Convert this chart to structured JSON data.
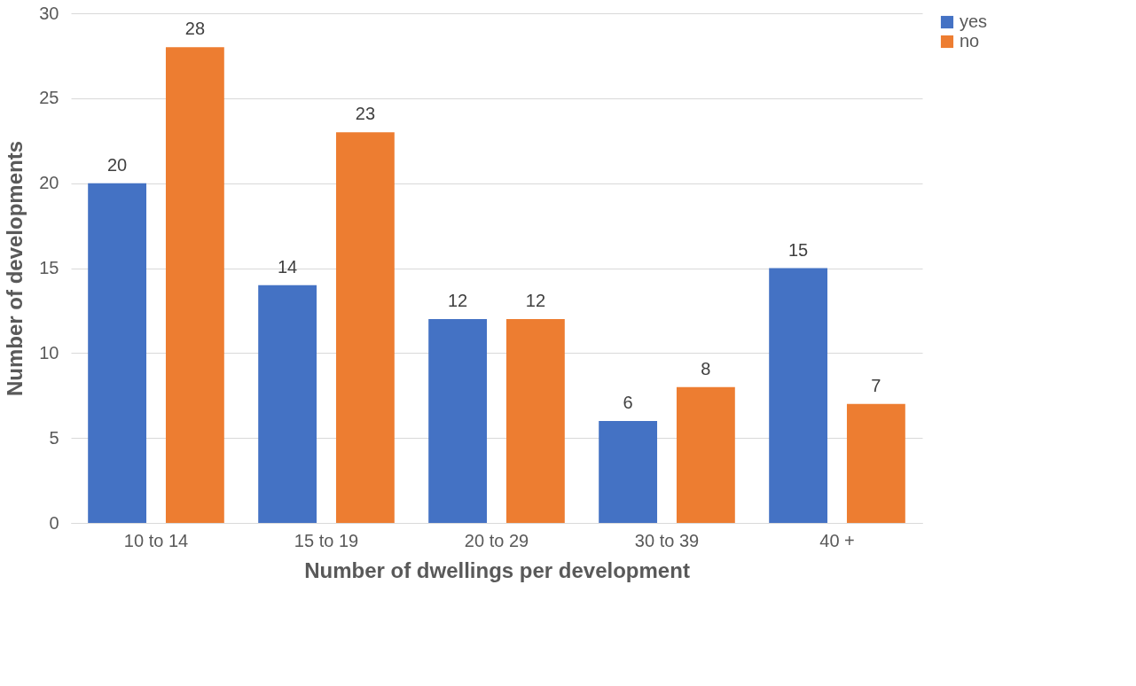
{
  "chart_data": {
    "type": "bar",
    "xlabel": "Number of dwellings per development",
    "ylabel": "Number of developments",
    "categories": [
      "10 to 14",
      "15 to 19",
      "20 to 29",
      "30 to 39",
      "40 +"
    ],
    "series": [
      {
        "name": "yes",
        "color": "#4472c4",
        "values": [
          20,
          14,
          12,
          6,
          15
        ]
      },
      {
        "name": "no",
        "color": "#ed7d31",
        "values": [
          28,
          23,
          12,
          8,
          7
        ]
      }
    ],
    "ylim": [
      0,
      30
    ],
    "yticks": [
      0,
      5,
      10,
      15,
      20,
      25,
      30
    ],
    "grid": "y",
    "legend": "right",
    "data_labels": true
  }
}
